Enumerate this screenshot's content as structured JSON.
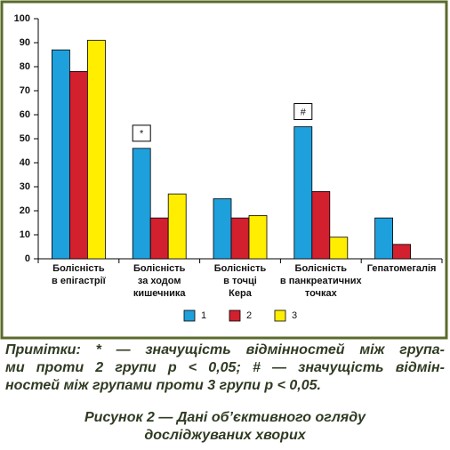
{
  "chart_data": {
    "type": "bar",
    "categories": [
      "Болісність\nв епігастрії",
      "Болісність\nза ходом\nкишечника",
      "Болісність\nв точці\nКера",
      "Болісність\nв панкреатичних\nточках",
      "Гепатомегалія"
    ],
    "series": [
      {
        "name": "1",
        "color": "#1ea0dc",
        "values": [
          87,
          46,
          25,
          55,
          17
        ]
      },
      {
        "name": "2",
        "color": "#d2202e",
        "values": [
          78,
          17,
          17,
          28,
          6
        ]
      },
      {
        "name": "3",
        "color": "#ffee00",
        "values": [
          91,
          27,
          18,
          9,
          null
        ]
      }
    ],
    "ylim": [
      0,
      100
    ],
    "yticks": [
      0,
      10,
      20,
      30,
      40,
      50,
      60,
      70,
      80,
      90,
      100
    ],
    "grid": false,
    "annotations": [
      {
        "text": "*",
        "category": "Болісність\nза ходом\nкишечника",
        "series": "1"
      },
      {
        "text": "#",
        "category": "Болісність\nв панкреатичних\nточках",
        "series": "1"
      }
    ],
    "border_color": "#5b6b2c"
  },
  "notes": [
    "Примітки: * — значущість відмінностей між група-",
    "ми проти 2 групи p < 0,05; # — значущість відмін-",
    "ностей між групами проти 3 групи p < 0,05."
  ],
  "caption": [
    "Рисунок 2 — Дані об’єктивного огляду",
    "досліджуваних хворих"
  ]
}
